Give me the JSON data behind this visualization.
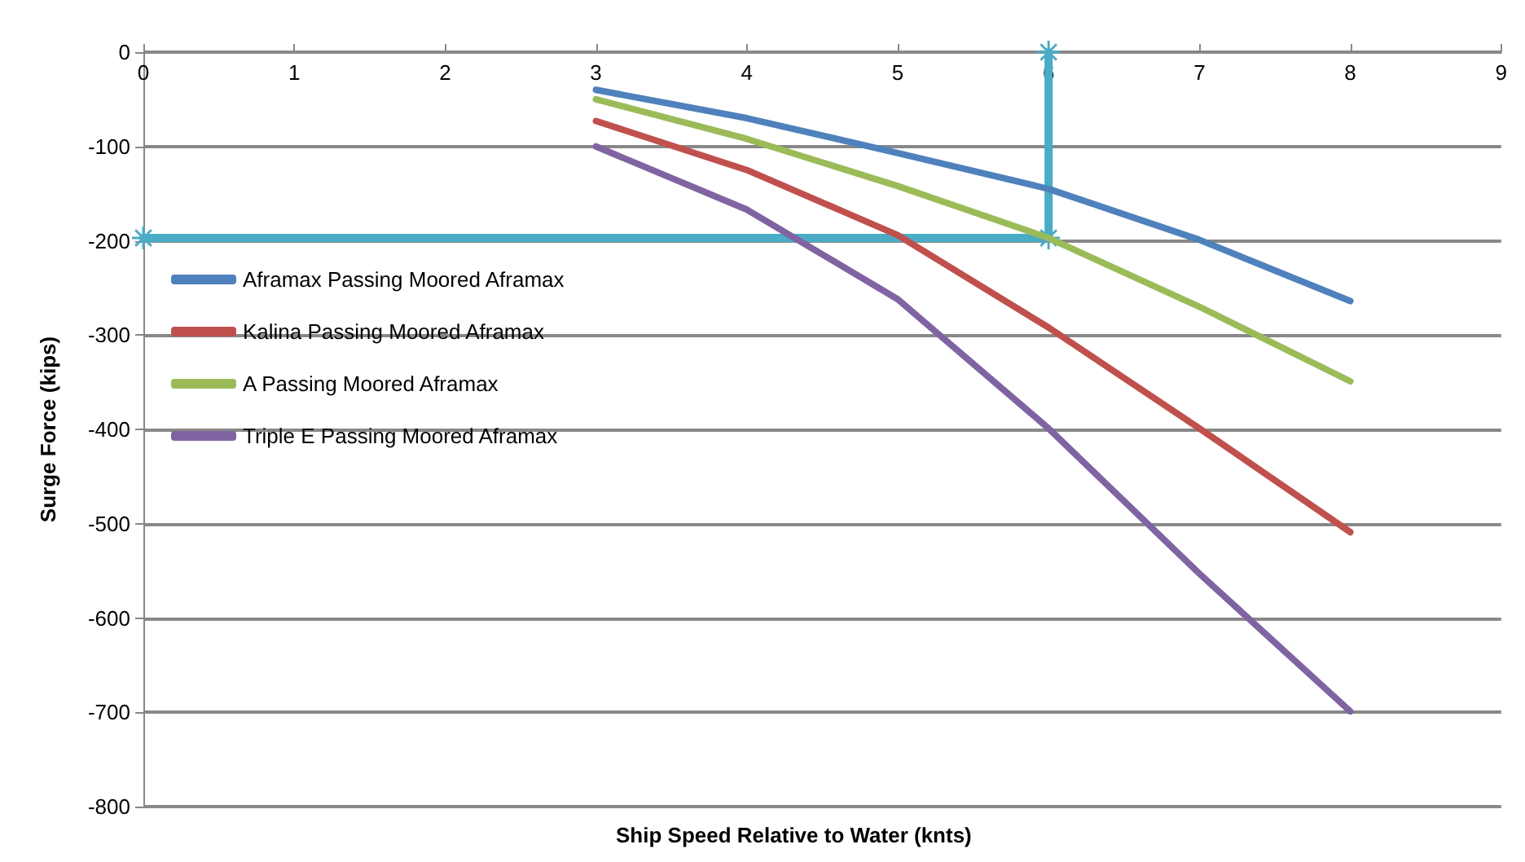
{
  "chart_data": {
    "type": "line",
    "xlabel": "Ship Speed Relative to Water (knts)",
    "ylabel": "Surge Force (kips)",
    "xlim": [
      0,
      9
    ],
    "xticks": [
      0,
      1,
      2,
      3,
      4,
      5,
      6,
      7,
      8,
      9
    ],
    "ylim": [
      -800,
      0
    ],
    "yticks": [
      -800,
      -700,
      -600,
      -500,
      -400,
      -300,
      -200,
      -100,
      0
    ],
    "grid": "y",
    "legend": "top left",
    "marker": "none",
    "line_style": "solid",
    "series": [
      {
        "name": "Aframax Passing Moored Aframax",
        "color": "#4f81bd",
        "x": [
          3,
          4,
          5,
          6,
          7,
          8
        ],
        "values": [
          -40,
          -70,
          -107,
          -145,
          -199,
          -264
        ]
      },
      {
        "name": "Kalina Passing Moored Aframax",
        "color": "#c0504d",
        "x": [
          3,
          4,
          5,
          6,
          7,
          8
        ],
        "values": [
          -73,
          -125,
          -194,
          -292,
          -399,
          -509
        ]
      },
      {
        "name": "A Passing Moored Aframax",
        "color": "#9bbb59",
        "x": [
          3,
          4,
          5,
          6,
          7,
          8
        ],
        "values": [
          -50,
          -92,
          -142,
          -197,
          -270,
          -349
        ]
      },
      {
        "name": "Triple E Passing Moored Aframax",
        "color": "#8064a2",
        "x": [
          3,
          4,
          5,
          6,
          7,
          8
        ],
        "values": [
          -100,
          -167,
          -262,
          -399,
          -553,
          -699
        ]
      },
      {
        "color": "#4bacc6",
        "marker": "cross",
        "x": [
          0,
          6,
          6
        ],
        "values": [
          -197,
          -197,
          0
        ]
      }
    ]
  }
}
